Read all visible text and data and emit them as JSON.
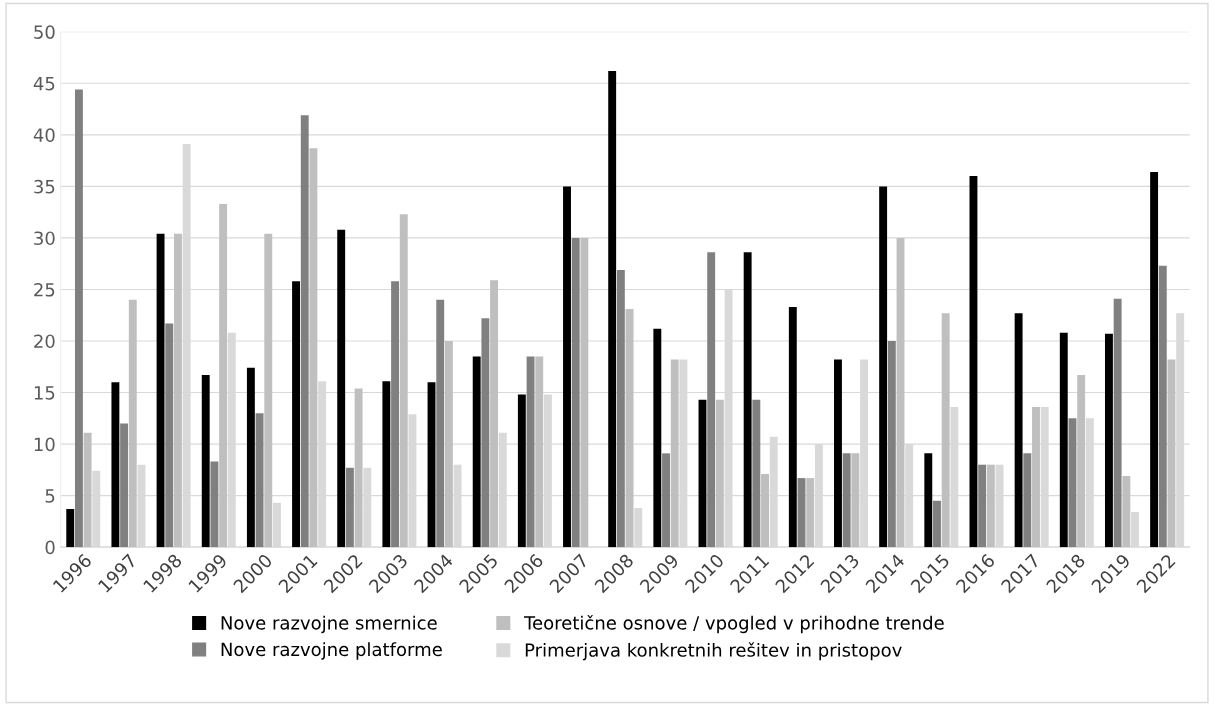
{
  "chart_data": {
    "type": "bar",
    "categories": [
      "1996",
      "1997",
      "1998",
      "1999",
      "2000",
      "2001",
      "2002",
      "2003",
      "2004",
      "2005",
      "2006",
      "2007",
      "2008",
      "2009",
      "2010",
      "2011",
      "2012",
      "2013",
      "2014",
      "2015",
      "2016",
      "2017",
      "2018",
      "2019",
      "2022"
    ],
    "series": [
      {
        "name": "Nove razvojne smernice",
        "color": "#000000",
        "values": [
          3.7,
          16,
          30.4,
          16.7,
          17.4,
          25.8,
          30.8,
          16.1,
          16,
          18.5,
          14.8,
          35,
          46.2,
          21.2,
          14.3,
          28.6,
          23.3,
          18.2,
          35,
          9.1,
          36,
          22.7,
          20.8,
          20.7,
          36.4
        ]
      },
      {
        "name": "Nove razvojne platforme",
        "color": "#808080",
        "values": [
          44.4,
          12,
          21.7,
          8.3,
          13,
          41.9,
          7.7,
          25.8,
          24,
          22.2,
          18.5,
          30,
          26.9,
          9.1,
          28.6,
          14.3,
          6.7,
          9.1,
          20,
          4.5,
          8,
          9.1,
          12.5,
          24.1,
          27.3
        ]
      },
      {
        "name": "Teoretične osnove / vpogled v prihodne trende",
        "color": "#bfbfbf",
        "values": [
          11.1,
          24,
          30.4,
          33.3,
          30.4,
          38.7,
          15.4,
          32.3,
          20,
          25.9,
          18.5,
          30,
          23.1,
          18.2,
          14.3,
          7.1,
          6.7,
          9.1,
          30,
          22.7,
          8,
          13.6,
          16.7,
          6.9,
          18.2
        ]
      },
      {
        "name": "Primerjava konkretnih rešitev in pristopov",
        "color": "#d9d9d9",
        "values": [
          7.4,
          8,
          39.1,
          20.8,
          4.3,
          16.1,
          7.7,
          12.9,
          8,
          11.1,
          14.8,
          0,
          3.8,
          18.2,
          25,
          10.7,
          10,
          18.2,
          10,
          13.6,
          8,
          13.6,
          12.5,
          3.4,
          22.7
        ]
      }
    ],
    "ylim": [
      0,
      50
    ],
    "yticks": [
      0,
      5,
      10,
      15,
      20,
      25,
      30,
      35,
      40,
      45,
      50
    ],
    "grid": "y",
    "legend": "bottom"
  }
}
